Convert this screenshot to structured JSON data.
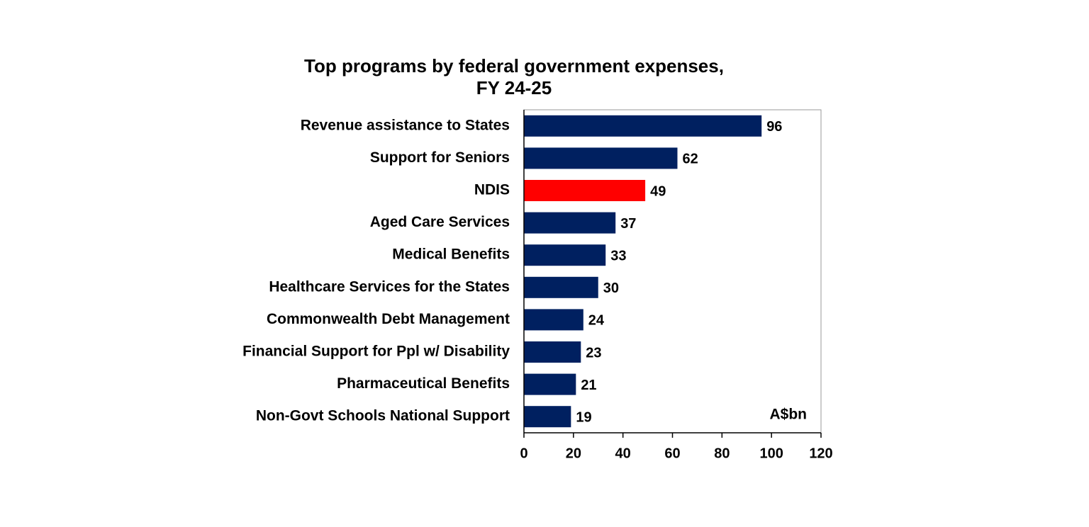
{
  "chart_data": {
    "type": "bar",
    "orientation": "horizontal",
    "title": [
      "Top programs by federal government expenses,",
      "FY 24-25"
    ],
    "categories": [
      "Revenue assistance to States",
      "Support for Seniors",
      "NDIS",
      "Aged Care Services",
      "Medical Benefits",
      "Healthcare Services for the States",
      "Commonwealth Debt Management",
      "Financial Support for Ppl w/ Disability",
      "Pharmaceutical Benefits",
      "Non-Govt Schools National Support"
    ],
    "values": [
      96,
      62,
      49,
      37,
      33,
      30,
      24,
      23,
      21,
      19
    ],
    "colors": [
      "#002060",
      "#002060",
      "#ff0000",
      "#002060",
      "#002060",
      "#002060",
      "#002060",
      "#002060",
      "#002060",
      "#002060"
    ],
    "annotation": "A$bn",
    "xlim": [
      0,
      120
    ],
    "xticks": [
      0,
      20,
      40,
      60,
      80,
      100,
      120
    ]
  }
}
